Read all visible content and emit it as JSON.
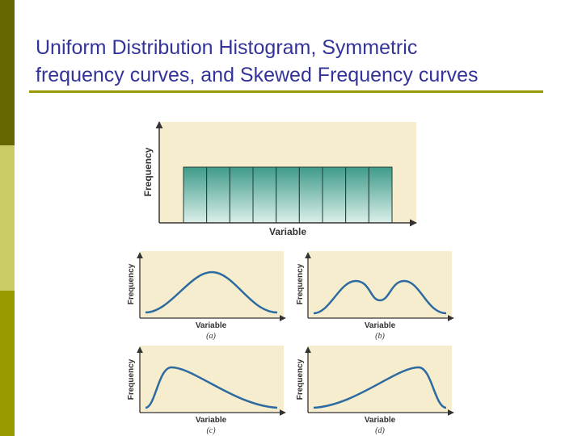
{
  "slide": {
    "title_line1": "Uniform Distribution Histogram, Symmetric",
    "title_line2": "frequency curves, and Skewed Frequency curves"
  },
  "colors": {
    "title": "#333399",
    "rule": "#999900",
    "panel_bg": "#f6edcf",
    "curve": "#2d6a9f",
    "bar_top": "#3f9b8a",
    "bar_bottom": "#dcefea"
  },
  "histogram": {
    "xlabel": "Variable",
    "ylabel": "Frequency",
    "bin_count": 9,
    "shape": "uniform"
  },
  "panels": [
    {
      "id": "a",
      "caption": "(a)",
      "xlabel": "Variable",
      "ylabel": "Frequency",
      "shape": "symmetric"
    },
    {
      "id": "b",
      "caption": "(b)",
      "xlabel": "Variable",
      "ylabel": "Frequency",
      "shape": "bimodal"
    },
    {
      "id": "c",
      "caption": "(c)",
      "xlabel": "Variable",
      "ylabel": "Frequency",
      "shape": "right-skewed"
    },
    {
      "id": "d",
      "caption": "(d)",
      "xlabel": "Variable",
      "ylabel": "Frequency",
      "shape": "left-skewed"
    }
  ]
}
